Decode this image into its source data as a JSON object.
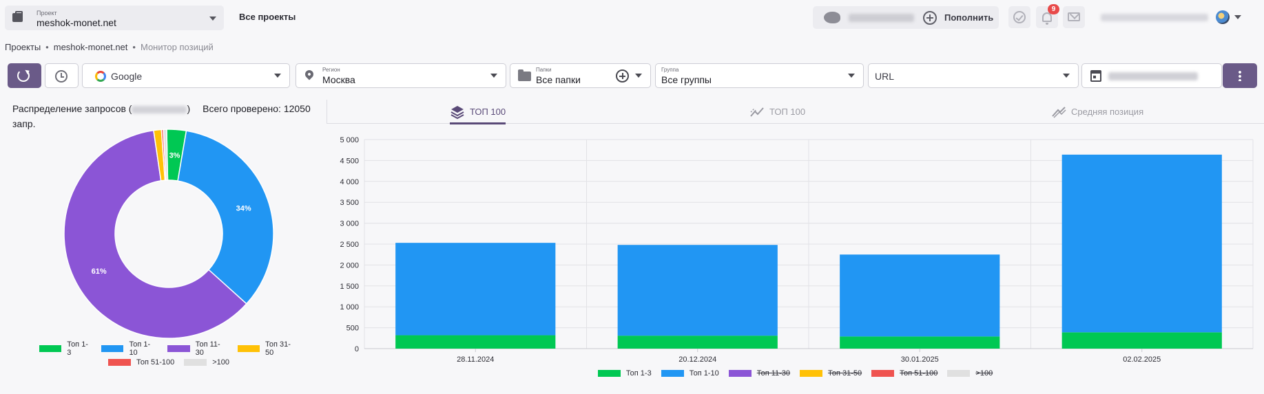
{
  "header": {
    "project_label": "Проект",
    "project_value": "meshok-monet.net",
    "all_projects": "Все проекты",
    "topup_label": "Пополнить",
    "notifications_count": "9",
    "icons": [
      "briefcase-icon",
      "piggy-bank-icon",
      "plus-circle-icon",
      "check-circle-icon",
      "bell-icon",
      "mail-icon",
      "avatar"
    ]
  },
  "breadcrumb": {
    "items": [
      "Проекты",
      "meshok-monet.net",
      "Монитор позиций"
    ],
    "separator": "•"
  },
  "filters": {
    "engine": "Google",
    "region_label": "Регион",
    "region_value": "Москва",
    "folders_label": "Папки",
    "folders_value": "Все папки",
    "group_label": "Группа",
    "group_value": "Все группы",
    "url_value": "URL"
  },
  "distribution": {
    "title_prefix": "Распределение запросов (",
    "title_suffix": ")",
    "total_text": "Всего проверено: 12050 запр."
  },
  "tabs": [
    {
      "label": "ТОП 100",
      "icon": "layers-icon",
      "active": true
    },
    {
      "label": "ТОП 100",
      "icon": "trend-icon",
      "active": false
    },
    {
      "label": "Средняя позиция",
      "icon": "double-trend-icon",
      "active": false
    }
  ],
  "colors": {
    "top1_3": "#00c853",
    "top1_10": "#2196f3",
    "top11_30": "#8b55d6",
    "top31_50": "#ffc107",
    "top51_100": "#ef5350",
    "over100": "#e0e0e0",
    "accent": "#6a5a88"
  },
  "chart_data": [
    {
      "type": "pie",
      "title": "",
      "categories": [
        "Топ 1-3",
        "Топ 1-10",
        "Топ 11-30",
        "Топ 31-50",
        "Топ 51-100",
        ">100"
      ],
      "values": [
        3,
        34,
        61,
        1.2,
        0.3,
        0.5
      ],
      "labels": [
        "3%",
        "34%",
        "61%",
        "",
        "",
        ""
      ],
      "legend": "bottom"
    },
    {
      "type": "bar",
      "stacked": true,
      "categories": [
        "28.11.2024",
        "20.12.2024",
        "30.01.2025",
        "02.02.2025"
      ],
      "series": [
        {
          "name": "Топ 1-3",
          "values": [
            320,
            310,
            290,
            390
          ],
          "visible": true
        },
        {
          "name": "Топ 1-10",
          "values": [
            2210,
            2170,
            1960,
            4250
          ],
          "visible": true
        },
        {
          "name": "Топ 11-30",
          "values": [
            0,
            0,
            0,
            0
          ],
          "visible": false
        },
        {
          "name": "Топ 31-50",
          "values": [
            0,
            0,
            0,
            0
          ],
          "visible": false
        },
        {
          "name": "Топ 51-100",
          "values": [
            0,
            0,
            0,
            0
          ],
          "visible": false
        },
        {
          "name": ">100",
          "values": [
            0,
            0,
            0,
            0
          ],
          "visible": false
        }
      ],
      "ylim": [
        0,
        5000
      ],
      "yticks": [
        "0",
        "500",
        "1 000",
        "1 500",
        "2 000",
        "2 500",
        "3 000",
        "3 500",
        "4 000",
        "4 500",
        "5 000"
      ],
      "grid": true,
      "legend": "bottom"
    }
  ]
}
